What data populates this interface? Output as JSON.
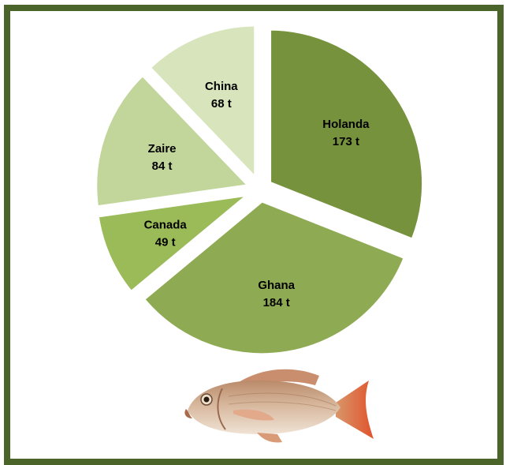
{
  "chart_data": {
    "type": "pie",
    "unit": "t",
    "slices": [
      {
        "name": "Holanda",
        "value": 173,
        "display": "173 t",
        "color": "#76923c"
      },
      {
        "name": "Ghana",
        "value": 184,
        "display": "184 t",
        "color": "#8eaa52"
      },
      {
        "name": "Canada",
        "value": 49,
        "display": "49 t",
        "color": "#9bbb59"
      },
      {
        "name": "Zaire",
        "value": 84,
        "display": "84 t",
        "color": "#c2d69b"
      },
      {
        "name": "China",
        "value": 68,
        "display": "68 t",
        "color": "#d7e4bc"
      }
    ],
    "exploded": true,
    "legend": "none",
    "grid": false
  },
  "decoration": {
    "image": "fish-icon"
  },
  "colors": {
    "border": "#4a6429",
    "background": "#ffffff"
  }
}
